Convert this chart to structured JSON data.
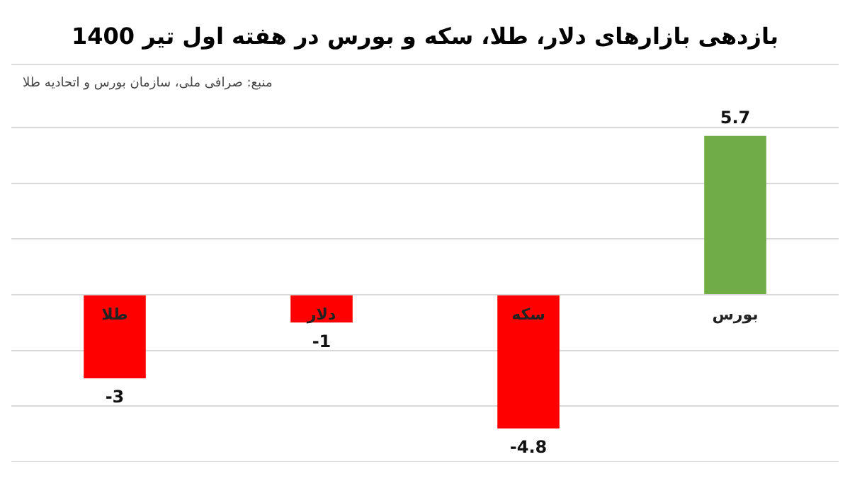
{
  "chart_data": {
    "type": "bar",
    "title": "بازدهی بازارهای دلار، طلا، سکه و بورس در هفته اول تیر 1400",
    "annotations": [
      "منبع: صرافی ملی، سازمان بورس و اتحادیه طلا"
    ],
    "categories": [
      "طلا",
      "دلار",
      "سکه",
      "بورس"
    ],
    "values": [
      -3,
      -1,
      -4.8,
      5.7
    ],
    "colors": [
      "#ff0000",
      "#ff0000",
      "#ff0000",
      "#70ad47"
    ],
    "ylim": [
      -6,
      6.2
    ],
    "yticks": [
      {
        "value": -6,
        "label": null
      },
      {
        "value": -4,
        "label": null
      },
      {
        "value": -2,
        "label": null
      },
      {
        "value": 0,
        "label": null
      },
      {
        "value": 2,
        "label": null
      },
      {
        "value": 4,
        "label": null
      },
      {
        "value": 6,
        "label": null
      }
    ],
    "tick_labels": "x",
    "grid": "y",
    "data_labels": true,
    "legend": false
  }
}
